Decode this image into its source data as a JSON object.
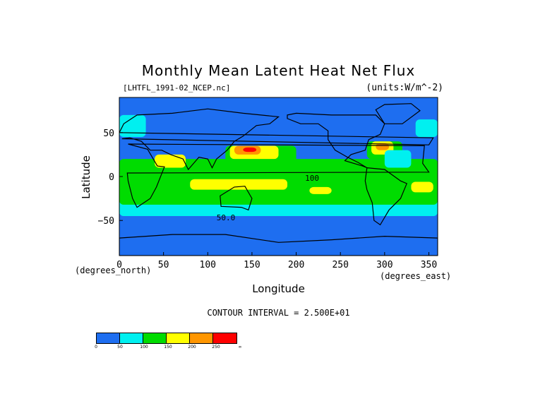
{
  "title": "Monthly Mean Latent Heat Net Flux",
  "file_label": "[LHTFL_1991-02_NCEP.nc]",
  "units_label": "(units:W/m^-2)",
  "chart_data": {
    "type": "heatmap",
    "title": "Monthly Mean Latent Heat Net Flux",
    "xlabel": "Longitude",
    "ylabel": "Latitude",
    "x_unit": "(degrees_east)",
    "y_unit": "(degrees_north)",
    "xlim": [
      0,
      360
    ],
    "ylim": [
      -90,
      90
    ],
    "xticks": [
      0,
      50,
      100,
      150,
      200,
      250,
      300,
      350
    ],
    "yticks": [
      -50,
      0,
      50
    ],
    "contour_interval_text": "CONTOUR INTERVAL = 2.500E+01",
    "contour_labels": [
      {
        "lon": 210,
        "lat": -5,
        "value": "100"
      },
      {
        "lon": 110,
        "lat": -50,
        "value": "50.0"
      }
    ],
    "color_levels": [
      0,
      50,
      100,
      150,
      200,
      250
    ],
    "color_level_labels": [
      "0",
      "50",
      "100",
      "150",
      "200",
      "250",
      "∞"
    ],
    "colors": [
      "#1e6ef0",
      "#00f0f0",
      "#00dc00",
      "#ffff00",
      "#ff9600",
      "#ff0000"
    ],
    "fields": [
      {
        "lon": [
          0,
          360
        ],
        "lat": [
          -90,
          90
        ],
        "bin": 0
      },
      {
        "lon": [
          0,
          360
        ],
        "lat": [
          -45,
          -25
        ],
        "bin": 1
      },
      {
        "lon": [
          0,
          360
        ],
        "lat": [
          -32,
          20
        ],
        "bin": 2
      },
      {
        "lon": [
          80,
          190
        ],
        "lat": [
          -15,
          -3
        ],
        "bin": 3
      },
      {
        "lon": [
          215,
          240
        ],
        "lat": [
          -20,
          -12
        ],
        "bin": 3
      },
      {
        "lon": [
          330,
          355
        ],
        "lat": [
          -18,
          -6
        ],
        "bin": 3
      },
      {
        "lon": [
          120,
          200
        ],
        "lat": [
          15,
          35
        ],
        "bin": 2
      },
      {
        "lon": [
          125,
          180
        ],
        "lat": [
          20,
          35
        ],
        "bin": 3
      },
      {
        "lon": [
          130,
          160
        ],
        "lat": [
          25,
          35
        ],
        "bin": 4
      },
      {
        "lon": [
          140,
          155
        ],
        "lat": [
          28,
          33
        ],
        "bin": 5
      },
      {
        "lon": [
          280,
          320
        ],
        "lat": [
          20,
          40
        ],
        "bin": 2
      },
      {
        "lon": [
          285,
          310
        ],
        "lat": [
          25,
          40
        ],
        "bin": 3
      },
      {
        "lon": [
          290,
          305
        ],
        "lat": [
          30,
          38
        ],
        "bin": 4
      },
      {
        "lon": [
          300,
          330
        ],
        "lat": [
          10,
          30
        ],
        "bin": 1
      },
      {
        "lon": [
          40,
          75
        ],
        "lat": [
          10,
          25
        ],
        "bin": 3
      },
      {
        "lon": [
          0,
          30
        ],
        "lat": [
          45,
          70
        ],
        "bin": 1
      },
      {
        "lon": [
          335,
          360
        ],
        "lat": [
          45,
          65
        ],
        "bin": 1
      }
    ],
    "land": [
      {
        "name": "north-america",
        "pts": [
          [
            190,
            70
          ],
          [
            200,
            72
          ],
          [
            240,
            70
          ],
          [
            290,
            70
          ],
          [
            300,
            60
          ],
          [
            295,
            48
          ],
          [
            282,
            42
          ],
          [
            278,
            30
          ],
          [
            262,
            25
          ],
          [
            255,
            18
          ],
          [
            275,
            12
          ],
          [
            280,
            10
          ],
          [
            270,
            16
          ],
          [
            258,
            22
          ],
          [
            244,
            30
          ],
          [
            236,
            42
          ],
          [
            236,
            52
          ],
          [
            225,
            60
          ],
          [
            205,
            60
          ],
          [
            190,
            66
          ]
        ]
      },
      {
        "name": "south-america",
        "pts": [
          [
            280,
            10
          ],
          [
            300,
            8
          ],
          [
            318,
            -5
          ],
          [
            325,
            -8
          ],
          [
            318,
            -25
          ],
          [
            305,
            -38
          ],
          [
            295,
            -55
          ],
          [
            288,
            -50
          ],
          [
            286,
            -30
          ],
          [
            280,
            -15
          ],
          [
            278,
            -5
          ]
        ]
      },
      {
        "name": "africa",
        "pts": [
          [
            345,
            35
          ],
          [
            10,
            37
          ],
          [
            32,
            31
          ],
          [
            43,
            12
          ],
          [
            51,
            11
          ],
          [
            42,
            -12
          ],
          [
            35,
            -25
          ],
          [
            20,
            -35
          ],
          [
            15,
            -25
          ],
          [
            10,
            -5
          ],
          [
            9,
            4
          ],
          [
            350,
            5
          ],
          [
            343,
            15
          ]
        ]
      },
      {
        "name": "eurasia",
        "pts": [
          [
            350,
            36
          ],
          [
            355,
            44
          ],
          [
            0,
            50
          ],
          [
            5,
            60
          ],
          [
            20,
            70
          ],
          [
            60,
            72
          ],
          [
            100,
            77
          ],
          [
            140,
            72
          ],
          [
            180,
            68
          ],
          [
            170,
            60
          ],
          [
            155,
            58
          ],
          [
            140,
            46
          ],
          [
            130,
            40
          ],
          [
            122,
            30
          ],
          [
            110,
            20
          ],
          [
            105,
            10
          ],
          [
            100,
            20
          ],
          [
            90,
            22
          ],
          [
            78,
            8
          ],
          [
            72,
            20
          ],
          [
            58,
            25
          ],
          [
            48,
            30
          ],
          [
            35,
            30
          ],
          [
            25,
            40
          ],
          [
            12,
            44
          ],
          [
            3,
            43
          ]
        ]
      },
      {
        "name": "australia",
        "pts": [
          [
            114,
            -22
          ],
          [
            130,
            -12
          ],
          [
            142,
            -11
          ],
          [
            150,
            -25
          ],
          [
            146,
            -38
          ],
          [
            138,
            -35
          ],
          [
            115,
            -34
          ]
        ]
      },
      {
        "name": "antarctica",
        "pts": [
          [
            0,
            -70
          ],
          [
            60,
            -66
          ],
          [
            120,
            -66
          ],
          [
            180,
            -75
          ],
          [
            240,
            -72
          ],
          [
            300,
            -68
          ],
          [
            360,
            -70
          ],
          [
            360,
            -90
          ],
          [
            0,
            -90
          ]
        ]
      },
      {
        "name": "greenland",
        "pts": [
          [
            300,
            60
          ],
          [
            320,
            60
          ],
          [
            340,
            75
          ],
          [
            330,
            83
          ],
          [
            300,
            82
          ],
          [
            290,
            76
          ]
        ]
      }
    ]
  }
}
